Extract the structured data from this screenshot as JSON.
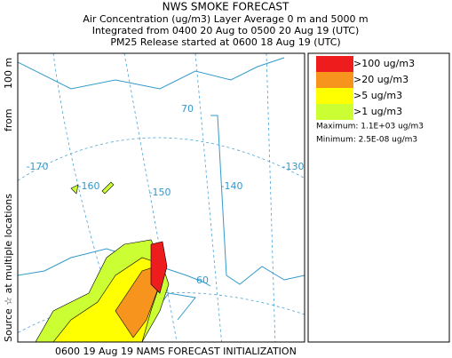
{
  "header": {
    "title": "NWS SMOKE FORECAST",
    "lines": [
      "Air Concentration (ug/m3) Layer Average    0 m and  5000 m",
      "Integrated from 0400 20 Aug to 0500 20 Aug 19 (UTC)",
      "PM25 Release started at 0600 18 Aug 19 (UTC)"
    ]
  },
  "side_label": {
    "source": "Source ☆ at multiple locations",
    "from": "from",
    "height": "100 m"
  },
  "legend": {
    "items": [
      {
        "label": ">100 ug/m3",
        "color": "#ee1c1c"
      },
      {
        "label": ">20 ug/m3",
        "color": "#f7941d"
      },
      {
        "label": ">5 ug/m3",
        "color": "#ffff00"
      },
      {
        "label": ">1 ug/m3",
        "color": "#ccff33"
      }
    ],
    "maximum": "Maximum: 1.1E+03 ug/m3",
    "minimum": "Minimum: 2.5E-08 ug/m3"
  },
  "map": {
    "labels": [
      "-170",
      "-160",
      "-150",
      "-140",
      "-130",
      "70",
      "60"
    ]
  },
  "footer": "0600 19 Aug 19 NAMS FORECAST INITIALIZATION"
}
